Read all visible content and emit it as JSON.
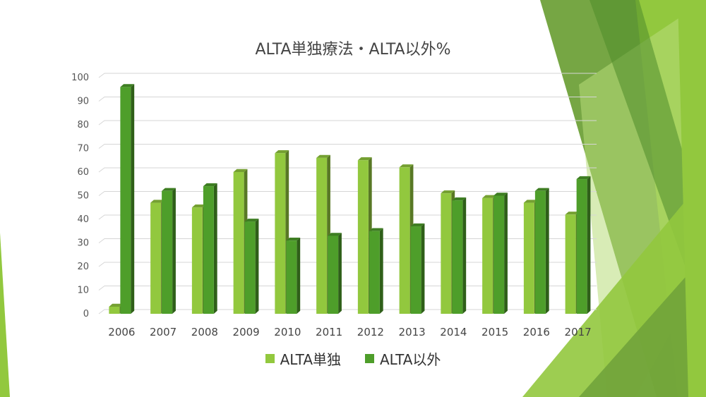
{
  "slide": {
    "background": "#ffffff",
    "decor_colors": [
      "#92C83E",
      "#6FA13A",
      "#B8DC7A",
      "#4E8C2A",
      "#D2E8A8"
    ]
  },
  "chart_data": {
    "type": "bar",
    "title": "ALTA単独療法・ALTA以外%",
    "xlabel": "",
    "ylabel": "",
    "categories": [
      "2006",
      "2007",
      "2008",
      "2009",
      "2010",
      "2011",
      "2012",
      "2013",
      "2014",
      "2015",
      "2016",
      "2017"
    ],
    "series": [
      {
        "name": "ALTA単独",
        "color": "#92C83E",
        "values": [
          3,
          47,
          45,
          60,
          68,
          66,
          65,
          62,
          51,
          49,
          47,
          42
        ]
      },
      {
        "name": "ALTA以外",
        "color": "#4E9E2A",
        "values": [
          96,
          52,
          54,
          39,
          31,
          33,
          35,
          37,
          48,
          50,
          52,
          57
        ]
      }
    ],
    "ylim": [
      0,
      100
    ],
    "yticks": [
      0,
      10,
      20,
      30,
      40,
      50,
      60,
      70,
      80,
      90,
      100
    ],
    "grid": true,
    "legend": "bottom",
    "style": "3d-clustered-column"
  }
}
